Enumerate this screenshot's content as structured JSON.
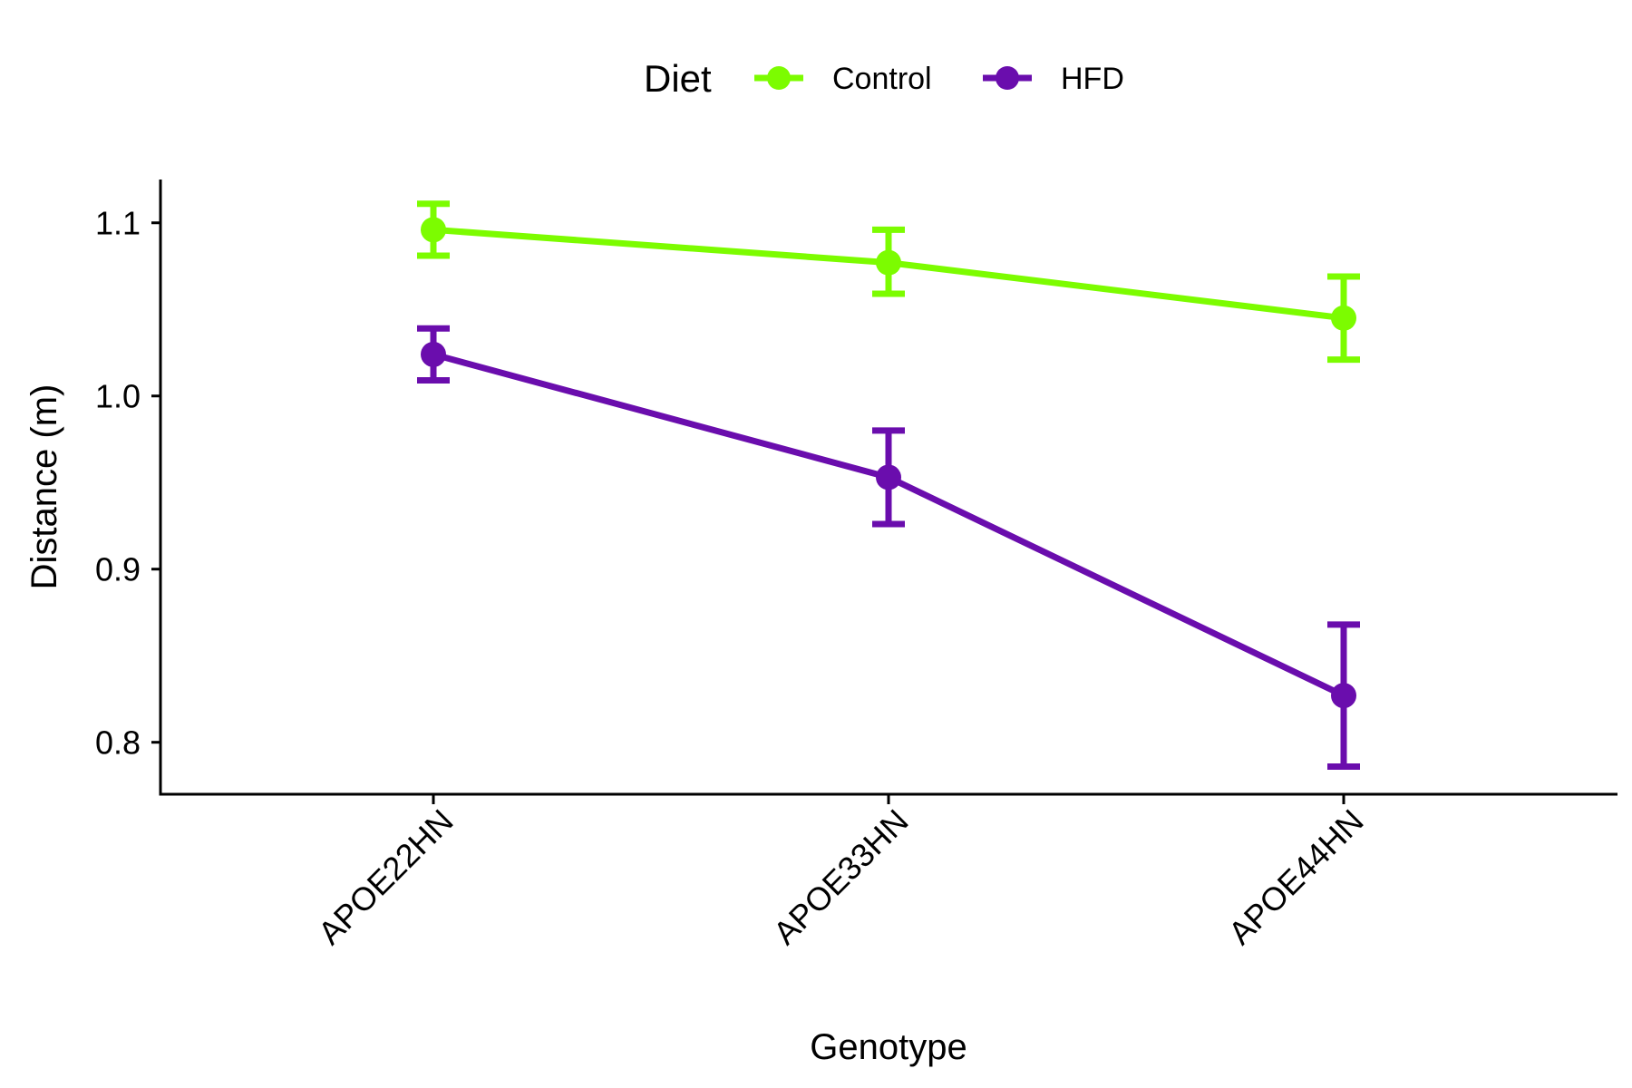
{
  "chart_data": {
    "type": "line",
    "xlabel": "Genotype",
    "ylabel": "Distance (m)",
    "categories": [
      "APOE22HN",
      "APOE33HN",
      "APOE44HN"
    ],
    "ylim": [
      0.77,
      1.125
    ],
    "yticks": [
      0.8,
      0.9,
      1.0,
      1.1
    ],
    "ytick_labels": [
      "0.8",
      "0.9",
      "1.0",
      "1.1"
    ],
    "grid": false,
    "legend": {
      "title": "Diet",
      "position": "top"
    },
    "series": [
      {
        "name": "Control",
        "color": "#7CFC00",
        "values": [
          1.096,
          1.077,
          1.045
        ],
        "err_low": [
          1.081,
          1.059,
          1.021
        ],
        "err_high": [
          1.111,
          1.096,
          1.069
        ]
      },
      {
        "name": "HFD",
        "color": "#6A0DAD",
        "values": [
          1.024,
          0.953,
          0.827
        ],
        "err_low": [
          1.009,
          0.926,
          0.786
        ],
        "err_high": [
          1.039,
          0.98,
          0.868
        ]
      }
    ]
  }
}
